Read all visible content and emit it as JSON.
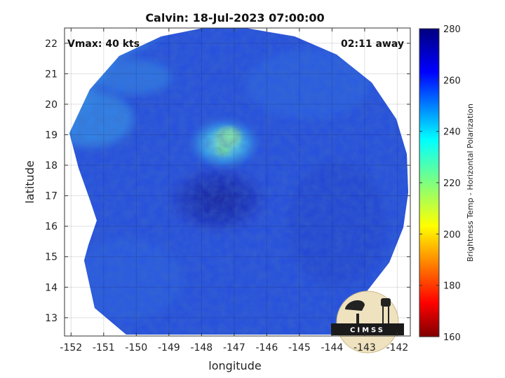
{
  "chart_data": {
    "type": "heatmap",
    "title": "Calvin: 18-Jul-2023 07:00:00",
    "xlabel": "longitude",
    "ylabel": "latitude",
    "xlim": [
      -152.2,
      -141.6
    ],
    "ylim": [
      12.4,
      22.5
    ],
    "x_ticks": [
      -152,
      -151,
      -150,
      -149,
      -148,
      -147,
      -146,
      -145,
      -144,
      -143,
      -142
    ],
    "y_ticks": [
      13,
      14,
      15,
      16,
      17,
      18,
      19,
      20,
      21,
      22
    ],
    "grid": true,
    "annotations": {
      "top_left": "Vmax: 40 kts",
      "top_right": "02:11 away"
    },
    "storm_center_approx": {
      "lon": -147.4,
      "lat": 17.0
    },
    "colorbar": {
      "label": "Brightness Temp - Horizontal Polarization",
      "min": 160,
      "max": 280,
      "ticks": [
        160,
        180,
        200,
        220,
        240,
        260,
        280
      ],
      "colormap": "jet"
    },
    "logo_text": "CIMSS"
  },
  "colors": {
    "background": "#ffffff",
    "cold_core": "#1a22a8",
    "field_base": "#2a55e8",
    "field_light": "#3aa0f0",
    "convection": "#7fe8c8"
  }
}
